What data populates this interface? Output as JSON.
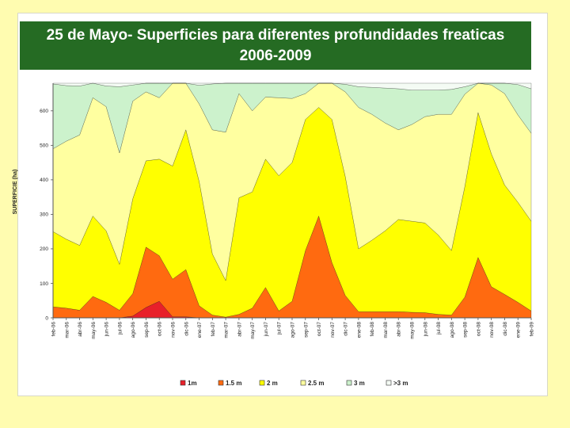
{
  "title": {
    "line1": "25 de Mayo- Superficies  para diferentes profundidades freaticas",
    "line2": "2006-2009"
  },
  "colors": {
    "background": "#fffcb0",
    "title_band": "#256b23",
    "title_text": "#ffffff"
  },
  "chart_data": {
    "type": "area",
    "stacked": true,
    "ylabel": "SUPERFICIE (ha)",
    "xlabel": "",
    "ylim": [
      0,
      680
    ],
    "yticks": [
      0,
      100,
      200,
      300,
      400,
      500,
      600
    ],
    "grid": false,
    "legend_position": "bottom",
    "categories": [
      "feb-06",
      "mar-06",
      "abr-06",
      "may-06",
      "jun-06",
      "jul-06",
      "ago-06",
      "sep-06",
      "oct-06",
      "nov-06",
      "dic-06",
      "ene-07",
      "feb-07",
      "mar-07",
      "abr-07",
      "may-07",
      "jun-07",
      "jul-07",
      "ago-07",
      "sep-07",
      "oct-07",
      "nov-07",
      "dic-07",
      "ene-08",
      "feb-08",
      "mar-08",
      "abr-08",
      "may-08",
      "jun-08",
      "jul-08",
      "ago-08",
      "sep-08",
      "oct-08",
      "nov-08",
      "dic-08",
      "ene-09",
      "feb-09"
    ],
    "series": [
      {
        "name": "1m",
        "color": "#e8202a",
        "cumulative": [
          0,
          0,
          0,
          0,
          0,
          0,
          5,
          30,
          48,
          3,
          3,
          0,
          0,
          0,
          0,
          0,
          0,
          0,
          0,
          0,
          0,
          0,
          0,
          0,
          0,
          0,
          0,
          0,
          0,
          0,
          0,
          0,
          0,
          0,
          0,
          0,
          0
        ]
      },
      {
        "name": "1.5 m",
        "color": "#ff6a10",
        "cumulative": [
          32,
          28,
          22,
          62,
          45,
          22,
          70,
          205,
          180,
          112,
          140,
          35,
          8,
          2,
          10,
          28,
          88,
          20,
          48,
          195,
          295,
          160,
          65,
          18,
          18,
          18,
          18,
          16,
          15,
          10,
          8,
          60,
          175,
          90,
          68,
          45,
          20
        ]
      },
      {
        "name": "2 m",
        "color": "#ffff00",
        "cumulative": [
          250,
          228,
          210,
          295,
          252,
          155,
          345,
          455,
          460,
          440,
          545,
          395,
          185,
          108,
          348,
          365,
          460,
          412,
          450,
          575,
          610,
          575,
          410,
          200,
          225,
          252,
          285,
          280,
          275,
          240,
          195,
          380,
          595,
          475,
          385,
          335,
          280
        ]
      },
      {
        "name": "2.5 m",
        "color": "#ffffa0",
        "cumulative": [
          490,
          512,
          530,
          638,
          612,
          478,
          628,
          655,
          638,
          680,
          680,
          620,
          545,
          538,
          650,
          600,
          640,
          638,
          636,
          650,
          680,
          680,
          655,
          610,
          590,
          565,
          545,
          560,
          583,
          590,
          590,
          648,
          680,
          675,
          650,
          588,
          535
        ]
      },
      {
        "name": "3 m",
        "color": "#ccf2cc",
        "cumulative": [
          678,
          673,
          672,
          680,
          672,
          670,
          675,
          680,
          680,
          680,
          680,
          674,
          678,
          680,
          680,
          680,
          680,
          680,
          680,
          680,
          680,
          680,
          677,
          670,
          668,
          666,
          664,
          660,
          660,
          660,
          662,
          670,
          680,
          680,
          680,
          676,
          664
        ]
      },
      {
        "name": ">3 m",
        "color": "#f4fbf4",
        "cumulative": [
          680,
          680,
          680,
          680,
          680,
          680,
          680,
          680,
          680,
          680,
          680,
          680,
          680,
          680,
          680,
          680,
          680,
          680,
          680,
          680,
          680,
          680,
          680,
          680,
          680,
          680,
          680,
          680,
          680,
          680,
          680,
          680,
          680,
          680,
          680,
          680,
          680
        ]
      }
    ]
  }
}
